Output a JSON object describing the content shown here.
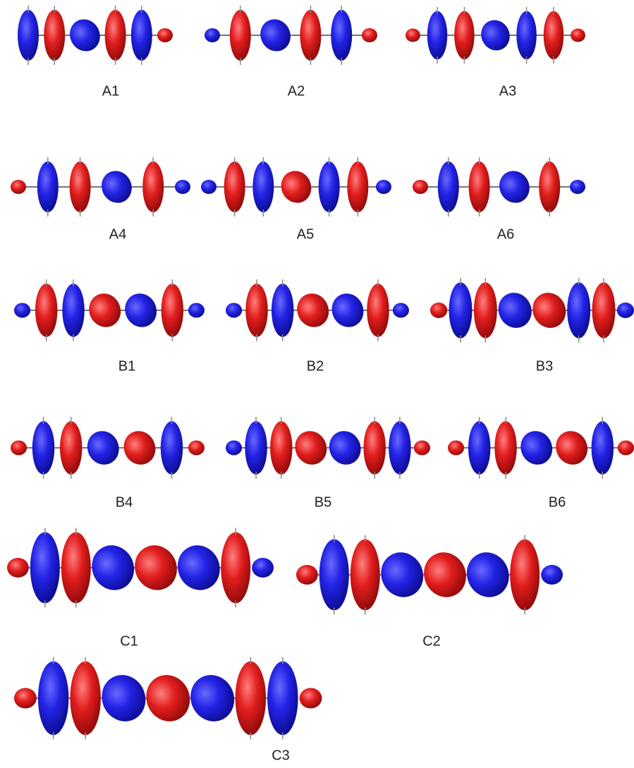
{
  "panels": [
    {
      "label": "A1"
    },
    {
      "label": "A2"
    },
    {
      "label": "A3"
    },
    {
      "label": "A4"
    },
    {
      "label": "A5"
    },
    {
      "label": "A6"
    },
    {
      "label": "B1"
    },
    {
      "label": "B2"
    },
    {
      "label": "B3"
    },
    {
      "label": "B4"
    },
    {
      "label": "B5"
    },
    {
      "label": "B6"
    },
    {
      "label": "C1"
    },
    {
      "label": "C2"
    },
    {
      "label": "C3"
    }
  ]
}
